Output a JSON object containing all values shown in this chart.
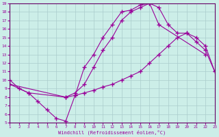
{
  "background_color": "#cceee8",
  "line_color": "#990099",
  "marker": "+",
  "markersize": 4,
  "linewidth": 0.8,
  "markeredgewidth": 1.0,
  "curve1_x": [
    1,
    2,
    3,
    4,
    5,
    6,
    7,
    8,
    9,
    10,
    11,
    12,
    13,
    14,
    15,
    16,
    17,
    22
  ],
  "curve1_y": [
    10,
    9,
    8.5,
    7.5,
    6.5,
    5.5,
    5.2,
    8.2,
    11.5,
    13,
    15,
    16.5,
    18,
    18.2,
    18.8,
    19.0,
    16.5,
    13
  ],
  "curve2_x": [
    1,
    3,
    7,
    8,
    9,
    10,
    11,
    12,
    13,
    14,
    15,
    16,
    17,
    18,
    19,
    20,
    21,
    22,
    23
  ],
  "curve2_y": [
    9.5,
    8.5,
    8.0,
    8.2,
    8.5,
    8.8,
    9.2,
    9.5,
    10.0,
    10.5,
    11.0,
    12.0,
    13.0,
    14.0,
    15.0,
    15.5,
    15.0,
    14.0,
    11.0
  ],
  "curve3_x": [
    1,
    7,
    8,
    9,
    10,
    11,
    12,
    13,
    14,
    15,
    16,
    17,
    18,
    19,
    20,
    21,
    22,
    23
  ],
  "curve3_y": [
    9.5,
    8.0,
    8.5,
    9.5,
    11.5,
    13.5,
    15.0,
    17.0,
    18.0,
    18.5,
    19.0,
    18.5,
    16.5,
    15.5,
    15.5,
    14.5,
    13.5,
    11.0
  ],
  "xlim": [
    1,
    23
  ],
  "ylim": [
    5,
    19
  ],
  "xticks": [
    1,
    2,
    3,
    4,
    5,
    6,
    7,
    8,
    9,
    10,
    11,
    12,
    13,
    14,
    15,
    16,
    17,
    18,
    19,
    20,
    21,
    22,
    23
  ],
  "yticks": [
    5,
    6,
    7,
    8,
    9,
    10,
    11,
    12,
    13,
    14,
    15,
    16,
    17,
    18,
    19
  ],
  "xlabel": "Windchill (Refroidissement éolien,°C)",
  "fontfamily": "monospace"
}
